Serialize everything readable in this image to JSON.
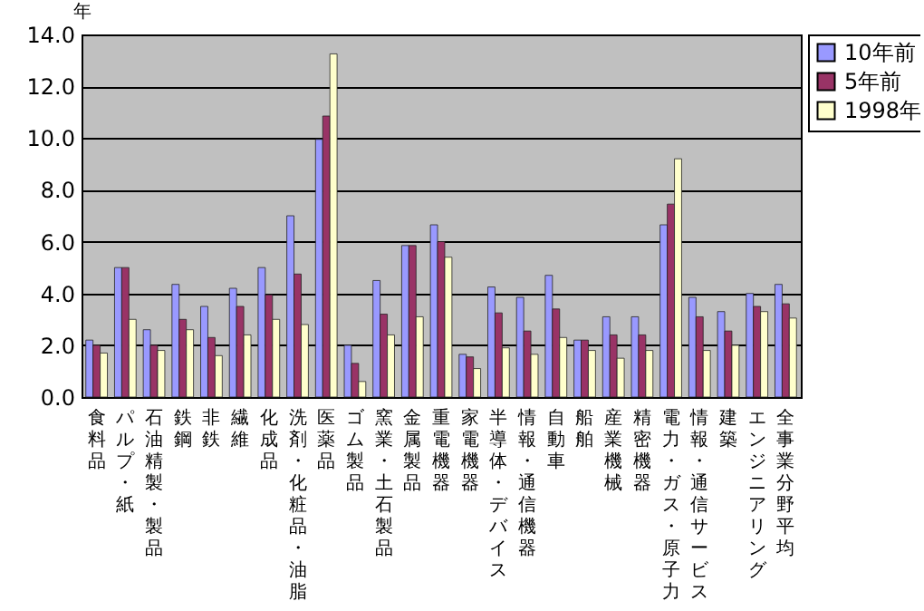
{
  "chart_data": {
    "type": "bar",
    "ylabel": "年",
    "categories": [
      "食料品",
      "パルプ・紙",
      "石油精製・製品",
      "鉄鋼",
      "非鉄",
      "繊維",
      "化成品",
      "洗剤・化粧品・油脂",
      "医薬品",
      "ゴム製品",
      "窯業・土石製品",
      "金属製品",
      "重電機器",
      "家電機器",
      "半導体・デバイス",
      "情報・通信機器",
      "自動車",
      "船舶",
      "産業機械",
      "精密機器",
      "電力・ガス・原子力",
      "情報・通信サービス",
      "建築",
      "エンジニアリング",
      "全事業分野平均"
    ],
    "series": [
      {
        "name": "10年前",
        "color": "#9999ff",
        "values": [
          2.2,
          5.0,
          2.6,
          4.35,
          3.5,
          4.2,
          5.0,
          7.0,
          9.95,
          2.0,
          4.5,
          5.85,
          6.65,
          1.65,
          4.25,
          3.85,
          4.7,
          2.2,
          3.1,
          3.1,
          6.65,
          3.85,
          3.3,
          4.0,
          4.35
        ]
      },
      {
        "name": "5年前",
        "color": "#993366",
        "values": [
          2.0,
          5.0,
          2.0,
          3.0,
          2.3,
          3.5,
          3.95,
          4.75,
          10.85,
          1.3,
          3.2,
          5.85,
          6.0,
          1.55,
          3.25,
          2.55,
          3.4,
          2.2,
          2.4,
          2.4,
          7.45,
          3.1,
          2.55,
          3.5,
          3.6
        ]
      },
      {
        "name": "1998年",
        "color": "#ffffcc",
        "values": [
          1.7,
          3.0,
          1.8,
          2.6,
          1.6,
          2.4,
          3.0,
          2.8,
          13.25,
          0.6,
          2.4,
          3.1,
          5.4,
          1.1,
          1.9,
          1.65,
          2.3,
          1.8,
          1.5,
          1.8,
          9.2,
          1.8,
          2.0,
          3.3,
          3.05
        ]
      }
    ],
    "ylim": [
      0,
      14
    ],
    "yticks": [
      {
        "value": 0,
        "label": "0.0"
      },
      {
        "value": 2,
        "label": "2.0"
      },
      {
        "value": 4,
        "label": "4.0"
      },
      {
        "value": 6,
        "label": "6.0"
      },
      {
        "value": 8,
        "label": "8.0"
      },
      {
        "value": 10,
        "label": "10.0"
      },
      {
        "value": 12,
        "label": "12.0"
      },
      {
        "value": 14,
        "label": "14.0"
      }
    ],
    "grid": "y",
    "legend": "right"
  }
}
